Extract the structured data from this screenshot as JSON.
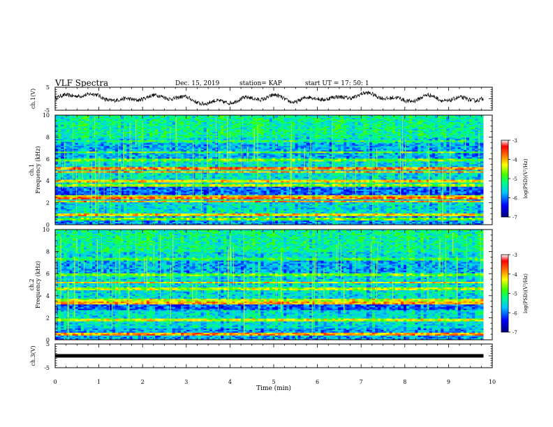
{
  "header": {
    "title": "VLF Spectra",
    "date": "Dec. 15, 2019",
    "station": "station= KAP",
    "start_time": "start  UT  =   17: 50: 1"
  },
  "colors": {
    "background": "#ffffff",
    "spectrogram_low": "#00009f",
    "spectrogram_high": "#ff0000",
    "trace": "#000000"
  },
  "chart_data": [
    {
      "type": "line",
      "name": "ch1-waveform",
      "ylabel": "ch.1(V)",
      "ylim": [
        -5,
        5
      ],
      "yticks": [
        -5,
        5
      ],
      "xlim": [
        0,
        10
      ],
      "note_values": "noisy waveform oscillating roughly between -4 and +3 V",
      "x": [
        0.0,
        0.5,
        1.0,
        1.5,
        2.0,
        2.5,
        3.0,
        3.5,
        4.0,
        4.5,
        5.0,
        5.5,
        6.0,
        6.5,
        7.0,
        7.5,
        8.0,
        8.5,
        9.0,
        9.5,
        9.8
      ],
      "y": [
        0.0,
        2.0,
        1.0,
        -1.0,
        0.5,
        1.0,
        0.0,
        -2.0,
        -1.0,
        0.0,
        1.0,
        -1.0,
        0.5,
        0.0,
        2.0,
        1.0,
        -1.0,
        1.0,
        -0.5,
        0.0,
        0.0
      ]
    },
    {
      "type": "heatmap",
      "name": "ch1-spectrogram",
      "ylabel": "ch.1\nFrequency (kHz)",
      "ylim": [
        0,
        10
      ],
      "yticks": [
        0,
        2,
        4,
        6,
        8,
        10
      ],
      "xlim": [
        0,
        10
      ],
      "colorbar": {
        "label": "log(PSD)(V²/Hz)",
        "min": -7,
        "max": -3,
        "ticks": [
          -3,
          -4,
          -5,
          -6,
          -7
        ]
      },
      "bands_khz": [
        {
          "f": 0.5,
          "level": -4.8,
          "width": 0.1
        },
        {
          "f": 0.9,
          "level": -4.2,
          "width": 0.12
        },
        {
          "f": 2.1,
          "level": -4.0,
          "width": 0.1
        },
        {
          "f": 2.4,
          "level": -3.8,
          "width": 0.15
        },
        {
          "f": 2.6,
          "level": -4.3,
          "width": 0.08
        },
        {
          "f": 3.6,
          "level": -4.6,
          "width": 0.1
        },
        {
          "f": 4.0,
          "level": -4.2,
          "width": 0.1
        },
        {
          "f": 4.8,
          "level": -4.0,
          "width": 0.1
        },
        {
          "f": 5.1,
          "level": -3.8,
          "width": 0.1
        },
        {
          "f": 5.9,
          "level": -4.8,
          "width": 0.1
        },
        {
          "f": 6.6,
          "level": -4.8,
          "width": 0.1
        },
        {
          "f": 7.6,
          "level": -5.0,
          "width": 0.08
        }
      ]
    },
    {
      "type": "heatmap",
      "name": "ch2-spectrogram",
      "ylabel": "ch.2\nFrequency (kHz)",
      "ylim": [
        0,
        10
      ],
      "yticks": [
        0,
        2,
        4,
        6,
        8,
        10
      ],
      "xlim": [
        0,
        10
      ],
      "colorbar": {
        "label": "log(PSD)(V²/Hz)",
        "min": -7,
        "max": -3,
        "ticks": [
          -3,
          -4,
          -5,
          -6,
          -7
        ]
      },
      "bands_khz": [
        {
          "f": 0.5,
          "level": -4.0,
          "width": 0.1
        },
        {
          "f": 1.8,
          "level": -4.4,
          "width": 0.1
        },
        {
          "f": 3.3,
          "level": -4.0,
          "width": 0.12
        },
        {
          "f": 3.6,
          "level": -4.4,
          "width": 0.1
        },
        {
          "f": 4.6,
          "level": -4.5,
          "width": 0.1
        },
        {
          "f": 5.2,
          "level": -4.2,
          "width": 0.1
        },
        {
          "f": 5.9,
          "level": -4.8,
          "width": 0.1
        },
        {
          "f": 7.3,
          "level": -5.0,
          "width": 0.08
        }
      ]
    },
    {
      "type": "line",
      "name": "ch3-waveform",
      "ylabel": "ch.3(V)",
      "ylim": [
        -5,
        5
      ],
      "yticks": [
        -5,
        5
      ],
      "xlim": [
        0,
        10
      ],
      "x": [
        0.0,
        9.8
      ],
      "y": [
        0.0,
        0.0
      ]
    }
  ],
  "x_axis": {
    "label": "Time  (min)",
    "ticks": [
      "0",
      "1",
      "2",
      "3",
      "4",
      "5",
      "6",
      "7",
      "8",
      "9",
      "10"
    ]
  }
}
